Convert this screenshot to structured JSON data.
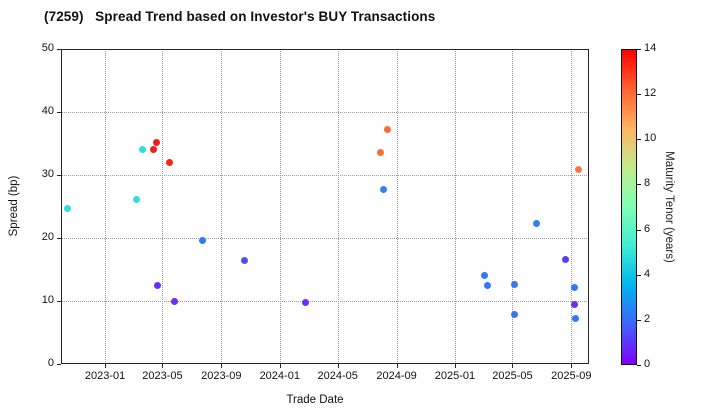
{
  "chart_data": {
    "type": "scatter",
    "title": "(7259)   Spread Trend based on Investor's BUY Transactions",
    "xlabel": "Trade Date",
    "ylabel": "Spread (bp)",
    "ylim": [
      0,
      50
    ],
    "yticks": [
      0,
      10,
      20,
      30,
      40,
      50
    ],
    "xticks": [
      "2023-01",
      "2023-05",
      "2023-09",
      "2024-01",
      "2024-05",
      "2024-09",
      "2025-01",
      "2025-05",
      "2025-09"
    ],
    "xtick_dates": [
      "2023-01-01",
      "2023-05-01",
      "2023-09-01",
      "2024-01-01",
      "2024-05-01",
      "2024-09-01",
      "2025-01-01",
      "2025-05-01",
      "2025-09-01"
    ],
    "x_range": [
      "2022-10-01",
      "2025-10-08"
    ],
    "grid": "dotted",
    "legend_position": "none",
    "colorbar": {
      "label": "Maturity Tenor (years)",
      "min": 0,
      "max": 14,
      "ticks": [
        0,
        2,
        4,
        6,
        8,
        10,
        12,
        14
      ],
      "colormap": "rainbow",
      "gradient_stops": [
        "#8000ff",
        "#4062fa",
        "#00b4ec",
        "#40ecd4",
        "#80ffb4",
        "#bfec8e",
        "#ffb462",
        "#ff6232",
        "#ff0000"
      ]
    },
    "points": [
      {
        "date": "2022-10-14",
        "spread": 24.7,
        "tenor": 5.0,
        "color": "#32ded6"
      },
      {
        "date": "2023-03-08",
        "spread": 26.1,
        "tenor": 5.0,
        "color": "#32ded6"
      },
      {
        "date": "2023-03-20",
        "spread": 34.1,
        "tenor": 5.5,
        "color": "#2cdfda"
      },
      {
        "date": "2023-04-12",
        "spread": 34.0,
        "tenor": 13.5,
        "color": "#f21d16"
      },
      {
        "date": "2023-04-18",
        "spread": 35.1,
        "tenor": 13.5,
        "color": "#f21d16"
      },
      {
        "date": "2023-04-21",
        "spread": 12.4,
        "tenor": 0.8,
        "color": "#6e2df2"
      },
      {
        "date": "2023-05-16",
        "spread": 32.0,
        "tenor": 13.0,
        "color": "#f52913"
      },
      {
        "date": "2023-05-26",
        "spread": 10.0,
        "tenor": 0.8,
        "color": "#6e2df2"
      },
      {
        "date": "2023-07-24",
        "spread": 19.6,
        "tenor": 2.4,
        "color": "#3379f0"
      },
      {
        "date": "2023-10-20",
        "spread": 16.4,
        "tenor": 1.4,
        "color": "#4f50f2"
      },
      {
        "date": "2024-02-23",
        "spread": 9.7,
        "tenor": 0.9,
        "color": "#7030ee"
      },
      {
        "date": "2024-07-30",
        "spread": 33.6,
        "tenor": 12.0,
        "color": "#f86f3c"
      },
      {
        "date": "2024-08-05",
        "spread": 27.7,
        "tenor": 3.0,
        "color": "#2e85ec"
      },
      {
        "date": "2024-08-13",
        "spread": 37.3,
        "tenor": 12.0,
        "color": "#f86f3c"
      },
      {
        "date": "2025-03-03",
        "spread": 14.0,
        "tenor": 2.4,
        "color": "#3379f0"
      },
      {
        "date": "2025-03-09",
        "spread": 12.4,
        "tenor": 2.4,
        "color": "#3379f0"
      },
      {
        "date": "2025-05-06",
        "spread": 12.6,
        "tenor": 2.4,
        "color": "#3379f0"
      },
      {
        "date": "2025-05-06",
        "spread": 7.8,
        "tenor": 2.4,
        "color": "#3379f0"
      },
      {
        "date": "2025-06-21",
        "spread": 22.3,
        "tenor": 2.8,
        "color": "#3180ee"
      },
      {
        "date": "2025-08-20",
        "spread": 16.6,
        "tenor": 1.2,
        "color": "#5a3cf4"
      },
      {
        "date": "2025-09-08",
        "spread": 12.1,
        "tenor": 2.4,
        "color": "#3379f0"
      },
      {
        "date": "2025-09-08",
        "spread": 9.4,
        "tenor": 0.9,
        "color": "#6e2df2"
      },
      {
        "date": "2025-09-10",
        "spread": 7.3,
        "tenor": 2.4,
        "color": "#3379f0"
      },
      {
        "date": "2025-09-16",
        "spread": 30.9,
        "tenor": 12.0,
        "color": "#f8764a"
      }
    ]
  }
}
